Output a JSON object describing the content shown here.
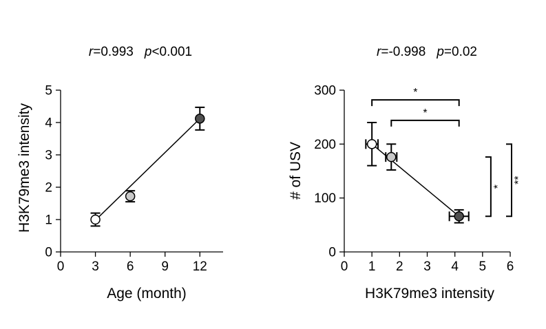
{
  "colors": {
    "background": "#ffffff",
    "axis": "#000000",
    "marker_young": "#ffffff",
    "marker_mid": "#c8c8c8",
    "marker_old": "#505050"
  },
  "chart_data": [
    {
      "type": "scatter",
      "stats": {
        "r_label": "r",
        "r_value": "=0.993",
        "p_label": "p",
        "p_value": "<0.001"
      },
      "xlabel": "Age (month)",
      "ylabel": "H3K79me3 intensity",
      "xlim": [
        0,
        14
      ],
      "ylim": [
        0,
        5
      ],
      "xticks": [
        0,
        3,
        6,
        9,
        12
      ],
      "yticks": [
        0,
        1,
        2,
        3,
        4,
        5
      ],
      "points": [
        {
          "x": 3,
          "y": 1.0,
          "yerr": 0.2,
          "fill": "#ffffff"
        },
        {
          "x": 6,
          "y": 1.72,
          "yerr": 0.17,
          "fill": "#c8c8c8"
        },
        {
          "x": 12,
          "y": 4.12,
          "yerr": 0.35,
          "fill": "#505050"
        }
      ],
      "fit_line": {
        "x": [
          3,
          12
        ],
        "y": [
          0.98,
          4.12
        ]
      }
    },
    {
      "type": "scatter",
      "stats": {
        "r_label": "r",
        "r_value": "=-0.998",
        "p_label": "p",
        "p_value": "=0.02"
      },
      "xlabel": "H3K79me3 intensity",
      "ylabel": "# of USV",
      "xlim": [
        0,
        6
      ],
      "ylim": [
        0,
        300
      ],
      "xticks": [
        0,
        1,
        2,
        3,
        4,
        5,
        6
      ],
      "yticks": [
        0,
        100,
        200,
        300
      ],
      "points": [
        {
          "x": 1.0,
          "y": 200,
          "xerr": 0.22,
          "yerr": 40,
          "fill": "#ffffff"
        },
        {
          "x": 1.7,
          "y": 176,
          "xerr": 0.2,
          "yerr": 24,
          "fill": "#c8c8c8"
        },
        {
          "x": 4.15,
          "y": 66,
          "xerr": 0.35,
          "yerr": 12,
          "fill": "#505050"
        }
      ],
      "fit_line": {
        "x": [
          1.0,
          4.15
        ],
        "y": [
          200,
          66
        ]
      },
      "significance": [
        {
          "from": 1.0,
          "to": 4.15,
          "level": 282,
          "label": "*"
        },
        {
          "from": 1.7,
          "to": 4.15,
          "level": 244,
          "label": "*"
        }
      ],
      "significance_vertical": [
        {
          "from": 66,
          "to": 176,
          "x": 5.3,
          "label": "*"
        },
        {
          "from": 66,
          "to": 200,
          "x": 6.05,
          "label": "**"
        }
      ]
    }
  ]
}
